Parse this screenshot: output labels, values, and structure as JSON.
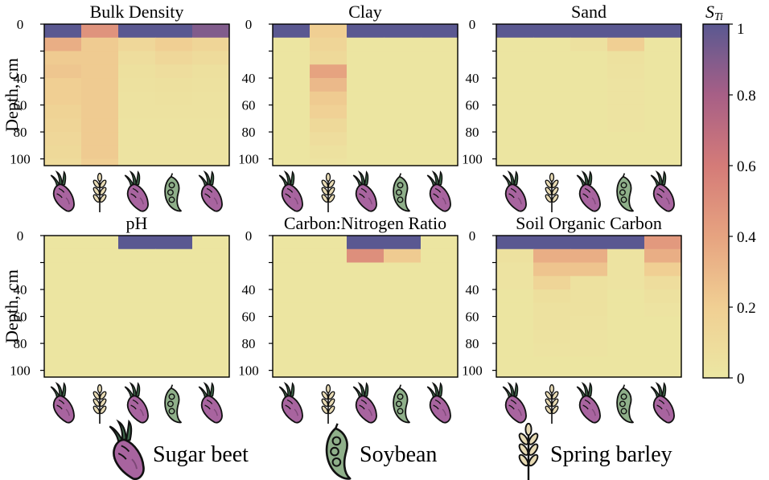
{
  "chart_data": {
    "type": "heatmap",
    "ylabel": "Depth, cm",
    "depth_ticks": [
      0,
      20,
      40,
      60,
      80,
      100
    ],
    "depth_ticks_printed": [
      "0",
      "40",
      "60",
      "80",
      "100"
    ],
    "depth_range": [
      0,
      105
    ],
    "layers": [
      [
        0,
        10
      ],
      [
        10,
        20
      ],
      [
        20,
        30
      ],
      [
        30,
        40
      ],
      [
        40,
        50
      ],
      [
        50,
        60
      ],
      [
        60,
        70
      ],
      [
        70,
        80
      ],
      [
        80,
        90
      ],
      [
        90,
        100
      ],
      [
        100,
        105
      ]
    ],
    "crop_sequence": [
      "sugar-beet",
      "spring-barley",
      "sugar-beet",
      "soybean",
      "sugar-beet"
    ],
    "colorbar": {
      "label_main": "S",
      "label_sub": "Ti",
      "range": [
        0,
        1
      ],
      "ticks": [
        0,
        0.2,
        0.4,
        0.6,
        0.8,
        1
      ],
      "tick_labels": [
        "0",
        "0.2",
        "0.4",
        "0.6",
        "0.8",
        "1"
      ],
      "colors": [
        "#ece7a3",
        "#f0cf93",
        "#e6a380",
        "#d47b78",
        "#a75f86",
        "#5a5891"
      ]
    },
    "panels": [
      {
        "title": "Bulk Density",
        "show_ylabel": true,
        "values": [
          [
            1.0,
            0.48,
            1.0,
            1.0,
            0.9
          ],
          [
            0.35,
            0.22,
            0.13,
            0.2,
            0.15
          ],
          [
            0.22,
            0.22,
            0.08,
            0.13,
            0.1
          ],
          [
            0.24,
            0.22,
            0.06,
            0.08,
            0.06
          ],
          [
            0.2,
            0.22,
            0.05,
            0.06,
            0.05
          ],
          [
            0.2,
            0.22,
            0.04,
            0.05,
            0.04
          ],
          [
            0.17,
            0.22,
            0.04,
            0.04,
            0.04
          ],
          [
            0.15,
            0.22,
            0.03,
            0.03,
            0.03
          ],
          [
            0.13,
            0.22,
            0.03,
            0.03,
            0.03
          ],
          [
            0.12,
            0.22,
            0.03,
            0.03,
            0.03
          ],
          [
            0.1,
            0.2,
            0.03,
            0.03,
            0.03
          ]
        ]
      },
      {
        "title": "Clay",
        "show_ylabel": false,
        "values": [
          [
            1.0,
            0.2,
            1.0,
            1.0,
            1.0
          ],
          [
            0.02,
            0.15,
            0.02,
            0.02,
            0.02
          ],
          [
            0.02,
            0.12,
            0.02,
            0.02,
            0.02
          ],
          [
            0.02,
            0.4,
            0.02,
            0.02,
            0.02
          ],
          [
            0.02,
            0.3,
            0.02,
            0.02,
            0.02
          ],
          [
            0.02,
            0.22,
            0.02,
            0.02,
            0.02
          ],
          [
            0.02,
            0.18,
            0.02,
            0.02,
            0.02
          ],
          [
            0.02,
            0.12,
            0.02,
            0.02,
            0.02
          ],
          [
            0.02,
            0.08,
            0.02,
            0.02,
            0.02
          ],
          [
            0.02,
            0.05,
            0.02,
            0.02,
            0.02
          ],
          [
            0.02,
            0.03,
            0.02,
            0.02,
            0.02
          ]
        ]
      },
      {
        "title": "Sand",
        "show_ylabel": false,
        "values": [
          [
            1.0,
            1.0,
            1.0,
            1.0,
            1.0
          ],
          [
            0.02,
            0.02,
            0.05,
            0.2,
            0.02
          ],
          [
            0.02,
            0.02,
            0.02,
            0.05,
            0.02
          ],
          [
            0.02,
            0.02,
            0.02,
            0.04,
            0.02
          ],
          [
            0.02,
            0.02,
            0.02,
            0.03,
            0.02
          ],
          [
            0.02,
            0.02,
            0.02,
            0.03,
            0.02
          ],
          [
            0.02,
            0.02,
            0.02,
            0.03,
            0.02
          ],
          [
            0.02,
            0.02,
            0.02,
            0.03,
            0.02
          ],
          [
            0.02,
            0.02,
            0.02,
            0.02,
            0.02
          ],
          [
            0.02,
            0.02,
            0.02,
            0.02,
            0.02
          ],
          [
            0.02,
            0.02,
            0.02,
            0.02,
            0.02
          ]
        ]
      },
      {
        "title": "pH",
        "show_ylabel": true,
        "values": [
          [
            0.02,
            0.02,
            1.0,
            1.0,
            0.02
          ],
          [
            0.02,
            0.02,
            0.02,
            0.02,
            0.02
          ],
          [
            0.02,
            0.02,
            0.02,
            0.02,
            0.02
          ],
          [
            0.02,
            0.02,
            0.02,
            0.02,
            0.02
          ],
          [
            0.02,
            0.02,
            0.02,
            0.02,
            0.02
          ],
          [
            0.02,
            0.02,
            0.02,
            0.02,
            0.02
          ],
          [
            0.02,
            0.02,
            0.02,
            0.02,
            0.02
          ],
          [
            0.02,
            0.02,
            0.02,
            0.02,
            0.02
          ],
          [
            0.02,
            0.02,
            0.02,
            0.02,
            0.02
          ],
          [
            0.02,
            0.02,
            0.02,
            0.02,
            0.02
          ],
          [
            0.02,
            0.02,
            0.02,
            0.02,
            0.02
          ]
        ]
      },
      {
        "title": "Carbon:Nitrogen Ratio",
        "show_ylabel": false,
        "values": [
          [
            0.02,
            0.02,
            1.0,
            1.0,
            0.02
          ],
          [
            0.02,
            0.02,
            0.5,
            0.22,
            0.02
          ],
          [
            0.02,
            0.02,
            0.02,
            0.02,
            0.02
          ],
          [
            0.02,
            0.02,
            0.02,
            0.02,
            0.02
          ],
          [
            0.02,
            0.02,
            0.02,
            0.02,
            0.02
          ],
          [
            0.02,
            0.02,
            0.02,
            0.02,
            0.02
          ],
          [
            0.02,
            0.02,
            0.02,
            0.02,
            0.02
          ],
          [
            0.02,
            0.02,
            0.02,
            0.02,
            0.02
          ],
          [
            0.02,
            0.02,
            0.02,
            0.02,
            0.02
          ],
          [
            0.02,
            0.02,
            0.02,
            0.02,
            0.02
          ],
          [
            0.02,
            0.02,
            0.02,
            0.02,
            0.02
          ]
        ]
      },
      {
        "title": "Soil Organic Carbon",
        "show_ylabel": false,
        "values": [
          [
            1.0,
            1.0,
            1.0,
            1.0,
            0.45
          ],
          [
            0.05,
            0.35,
            0.35,
            0.03,
            0.35
          ],
          [
            0.03,
            0.25,
            0.25,
            0.03,
            0.2
          ],
          [
            0.03,
            0.15,
            0.05,
            0.03,
            0.08
          ],
          [
            0.02,
            0.07,
            0.05,
            0.02,
            0.05
          ],
          [
            0.02,
            0.05,
            0.05,
            0.02,
            0.03
          ],
          [
            0.02,
            0.05,
            0.04,
            0.02,
            0.02
          ],
          [
            0.02,
            0.04,
            0.03,
            0.02,
            0.02
          ],
          [
            0.02,
            0.03,
            0.03,
            0.02,
            0.02
          ],
          [
            0.02,
            0.02,
            0.02,
            0.02,
            0.02
          ],
          [
            0.02,
            0.02,
            0.02,
            0.02,
            0.02
          ]
        ]
      }
    ],
    "legend": [
      {
        "icon": "sugar-beet",
        "label": "Sugar beet"
      },
      {
        "icon": "soybean",
        "label": "Soybean"
      },
      {
        "icon": "spring-barley",
        "label": "Spring barley"
      }
    ]
  },
  "icon_colors": {
    "beet": "#a8649f",
    "beet_stripe": "#7c4876",
    "beet_leaf": "#3f6a4b",
    "soybean": "#8fb08a",
    "barley": "#e8dbb5",
    "outline": "#111111"
  }
}
